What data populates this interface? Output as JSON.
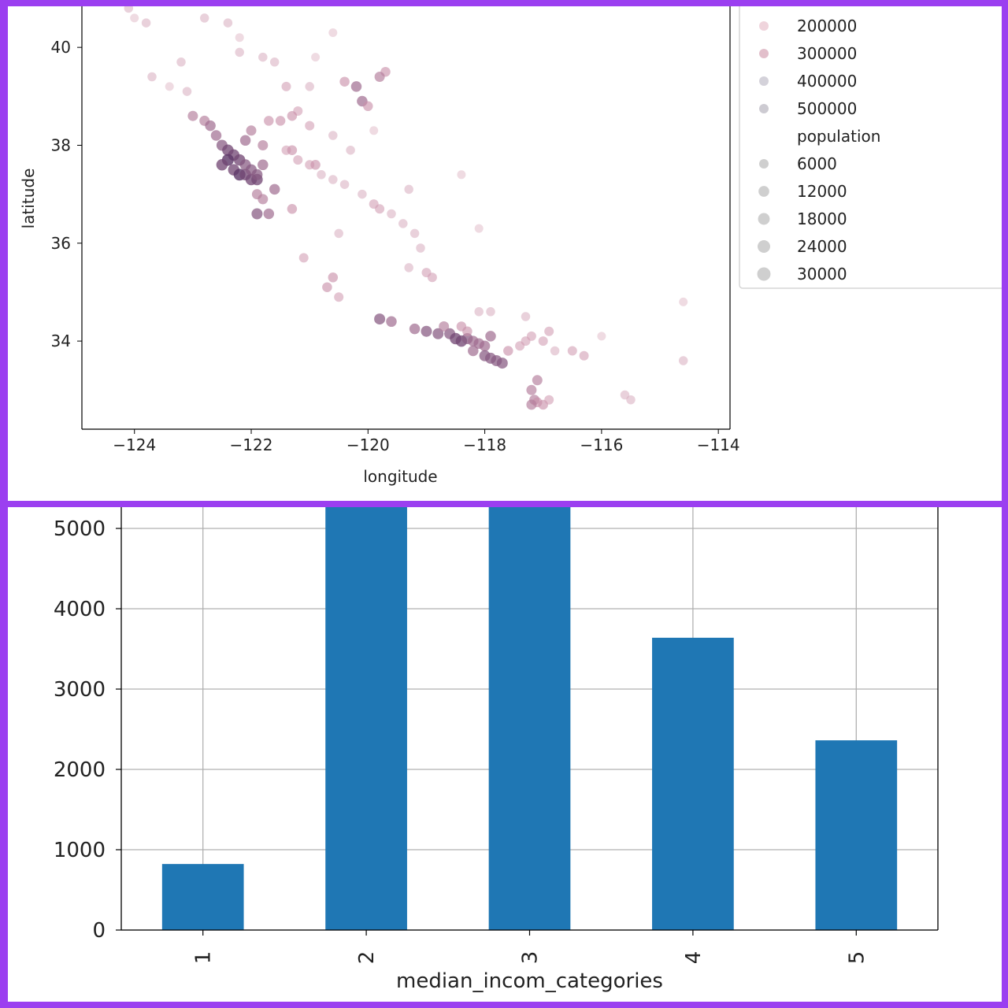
{
  "chart_data": [
    {
      "type": "scatter",
      "title": "",
      "xlabel": "longitude",
      "ylabel": "latitude",
      "xlim": [
        -124.9,
        -113.8
      ],
      "ylim": [
        32.2,
        41.0
      ],
      "x_ticks": [
        -124,
        -122,
        -120,
        -118,
        -116,
        -114
      ],
      "y_ticks": [
        34,
        36,
        38,
        40
      ],
      "x_tick_labels": [
        "−124",
        "−122",
        "−120",
        "−118",
        "−116",
        "−114"
      ],
      "y_tick_labels": [
        "34",
        "36",
        "38",
        "40"
      ],
      "grid": false,
      "legend": {
        "placement": "right",
        "value_entries": [
          {
            "label": "200000",
            "color": "#efd4dc"
          },
          {
            "label": "300000",
            "color": "#e2bfcb"
          },
          {
            "label": "400000",
            "color": "#d4d2da"
          },
          {
            "label": "500000",
            "color": "#cdcbd2"
          }
        ],
        "size_title": "population",
        "size_entries": [
          {
            "label": "6000",
            "size": 6000
          },
          {
            "label": "12000",
            "size": 12000
          },
          {
            "label": "18000",
            "size": 18000
          },
          {
            "label": "24000",
            "size": 24000
          },
          {
            "label": "30000",
            "size": 30000
          }
        ]
      },
      "colors": {
        "low": "#efd8de",
        "mid": "#c98ea8",
        "high": "#5d3768"
      },
      "series": [
        {
          "points": [
            [
              -124.1,
              40.8,
              0.3
            ],
            [
              -123.8,
              40.5,
              0.3
            ],
            [
              -124.0,
              40.6,
              0.2
            ],
            [
              -123.2,
              39.7,
              0.3
            ],
            [
              -123.7,
              39.4,
              0.3
            ],
            [
              -123.4,
              39.2,
              0.2
            ],
            [
              -122.8,
              40.6,
              0.3
            ],
            [
              -122.4,
              40.5,
              0.3
            ],
            [
              -122.2,
              39.9,
              0.3
            ],
            [
              -121.8,
              39.8,
              0.3
            ],
            [
              -121.6,
              39.7,
              0.3
            ],
            [
              -121.4,
              39.2,
              0.4
            ],
            [
              -121.0,
              39.2,
              0.3
            ],
            [
              -120.6,
              40.3,
              0.2
            ],
            [
              -120.9,
              39.8,
              0.2
            ],
            [
              -121.2,
              38.7,
              0.4
            ],
            [
              -121.3,
              38.6,
              0.5
            ],
            [
              -121.5,
              38.5,
              0.5
            ],
            [
              -121.0,
              38.4,
              0.4
            ],
            [
              -120.6,
              38.2,
              0.3
            ],
            [
              -120.4,
              39.3,
              0.5
            ],
            [
              -120.2,
              39.2,
              0.7
            ],
            [
              -120.1,
              38.9,
              0.7
            ],
            [
              -120.0,
              38.8,
              0.5
            ],
            [
              -123.0,
              38.6,
              0.6
            ],
            [
              -122.8,
              38.5,
              0.6
            ],
            [
              -122.7,
              38.4,
              0.7
            ],
            [
              -122.6,
              38.2,
              0.7
            ],
            [
              -122.5,
              38.0,
              0.8
            ],
            [
              -122.4,
              37.9,
              0.9
            ],
            [
              -122.3,
              37.8,
              0.9
            ],
            [
              -122.2,
              37.7,
              0.9
            ],
            [
              -122.4,
              37.7,
              1.0
            ],
            [
              -122.5,
              37.6,
              0.9
            ],
            [
              -122.3,
              37.5,
              0.9
            ],
            [
              -122.2,
              37.4,
              1.0
            ],
            [
              -122.1,
              37.4,
              0.9
            ],
            [
              -122.0,
              37.3,
              0.9
            ],
            [
              -121.9,
              37.3,
              0.9
            ],
            [
              -121.9,
              37.4,
              0.8
            ],
            [
              -122.0,
              37.5,
              0.8
            ],
            [
              -122.1,
              37.6,
              0.8
            ],
            [
              -121.8,
              37.6,
              0.7
            ],
            [
              -121.9,
              37.0,
              0.6
            ],
            [
              -121.8,
              36.9,
              0.6
            ],
            [
              -121.7,
              36.6,
              0.7
            ],
            [
              -121.9,
              36.6,
              0.8
            ],
            [
              -122.0,
              38.3,
              0.6
            ],
            [
              -122.1,
              38.1,
              0.7
            ],
            [
              -121.8,
              38.0,
              0.6
            ],
            [
              -121.4,
              37.9,
              0.4
            ],
            [
              -121.2,
              37.7,
              0.4
            ],
            [
              -121.0,
              37.6,
              0.4
            ],
            [
              -120.8,
              37.4,
              0.3
            ],
            [
              -120.6,
              37.3,
              0.3
            ],
            [
              -120.4,
              37.2,
              0.3
            ],
            [
              -120.1,
              37.0,
              0.3
            ],
            [
              -119.9,
              36.8,
              0.4
            ],
            [
              -119.8,
              36.7,
              0.4
            ],
            [
              -119.6,
              36.6,
              0.3
            ],
            [
              -119.4,
              36.4,
              0.3
            ],
            [
              -119.2,
              36.2,
              0.3
            ],
            [
              -119.1,
              35.9,
              0.3
            ],
            [
              -119.0,
              35.4,
              0.4
            ],
            [
              -118.9,
              35.3,
              0.4
            ],
            [
              -120.6,
              35.3,
              0.5
            ],
            [
              -120.5,
              34.9,
              0.4
            ],
            [
              -120.7,
              35.1,
              0.5
            ],
            [
              -121.1,
              35.7,
              0.4
            ],
            [
              -119.8,
              34.45,
              0.8
            ],
            [
              -119.6,
              34.4,
              0.7
            ],
            [
              -119.2,
              34.25,
              0.7
            ],
            [
              -119.0,
              34.2,
              0.8
            ],
            [
              -118.8,
              34.15,
              0.8
            ],
            [
              -118.6,
              34.15,
              0.8
            ],
            [
              -118.5,
              34.05,
              0.9
            ],
            [
              -118.4,
              34.0,
              0.9
            ],
            [
              -118.3,
              34.05,
              0.8
            ],
            [
              -118.2,
              34.0,
              0.7
            ],
            [
              -118.1,
              33.95,
              0.7
            ],
            [
              -118.0,
              33.9,
              0.7
            ],
            [
              -118.2,
              33.8,
              0.7
            ],
            [
              -118.0,
              33.7,
              0.8
            ],
            [
              -117.9,
              33.65,
              0.8
            ],
            [
              -117.8,
              33.6,
              0.8
            ],
            [
              -117.7,
              33.55,
              0.8
            ],
            [
              -117.6,
              33.8,
              0.5
            ],
            [
              -117.4,
              33.9,
              0.4
            ],
            [
              -117.3,
              34.0,
              0.4
            ],
            [
              -117.2,
              34.1,
              0.4
            ],
            [
              -117.0,
              34.0,
              0.4
            ],
            [
              -116.8,
              33.8,
              0.3
            ],
            [
              -117.1,
              33.2,
              0.6
            ],
            [
              -117.2,
              33.0,
              0.6
            ],
            [
              -117.15,
              32.8,
              0.6
            ],
            [
              -117.1,
              32.75,
              0.5
            ],
            [
              -117.0,
              32.7,
              0.5
            ],
            [
              -117.2,
              32.7,
              0.6
            ],
            [
              -116.9,
              32.8,
              0.4
            ],
            [
              -118.3,
              34.2,
              0.5
            ],
            [
              -118.4,
              34.3,
              0.5
            ],
            [
              -118.1,
              34.6,
              0.3
            ],
            [
              -117.9,
              34.6,
              0.3
            ],
            [
              -117.3,
              34.5,
              0.3
            ],
            [
              -116.5,
              33.8,
              0.4
            ],
            [
              -116.3,
              33.7,
              0.4
            ],
            [
              -115.6,
              32.9,
              0.3
            ],
            [
              -115.5,
              32.8,
              0.3
            ],
            [
              -114.6,
              33.6,
              0.3
            ],
            [
              -114.6,
              34.8,
              0.2
            ],
            [
              -116.0,
              34.1,
              0.2
            ],
            [
              -116.9,
              34.2,
              0.4
            ],
            [
              -119.3,
              37.1,
              0.3
            ],
            [
              -120.3,
              37.9,
              0.3
            ],
            [
              -119.9,
              38.3,
              0.2
            ],
            [
              -118.4,
              37.4,
              0.2
            ],
            [
              -118.1,
              36.3,
              0.2
            ],
            [
              -119.7,
              39.5,
              0.5
            ],
            [
              -119.8,
              39.4,
              0.6
            ],
            [
              -121.7,
              38.5,
              0.5
            ],
            [
              -122.2,
              40.2,
              0.2
            ],
            [
              -123.1,
              39.1,
              0.3
            ],
            [
              -121.3,
              37.9,
              0.5
            ],
            [
              -120.9,
              37.6,
              0.5
            ],
            [
              -121.6,
              37.1,
              0.7
            ],
            [
              -121.3,
              36.7,
              0.5
            ],
            [
              -120.5,
              36.2,
              0.3
            ],
            [
              -119.3,
              35.5,
              0.3
            ],
            [
              -118.7,
              34.3,
              0.6
            ],
            [
              -117.9,
              34.1,
              0.7
            ]
          ]
        }
      ]
    },
    {
      "type": "bar",
      "title": "",
      "xlabel": "median_incom_categories",
      "ylabel": "",
      "categories": [
        "1",
        "2",
        "3",
        "4",
        "5"
      ],
      "values": [
        822,
        5265,
        5265,
        3639,
        2362
      ],
      "ylim": [
        0,
        5265
      ],
      "y_ticks": [
        0,
        1000,
        2000,
        3000,
        4000,
        5000
      ],
      "y_tick_labels": [
        "0",
        "1000",
        "2000",
        "3000",
        "4000",
        "5000"
      ],
      "grid": true,
      "bar_color": "#1f77b4",
      "grid_color": "#b0b0b0"
    }
  ]
}
